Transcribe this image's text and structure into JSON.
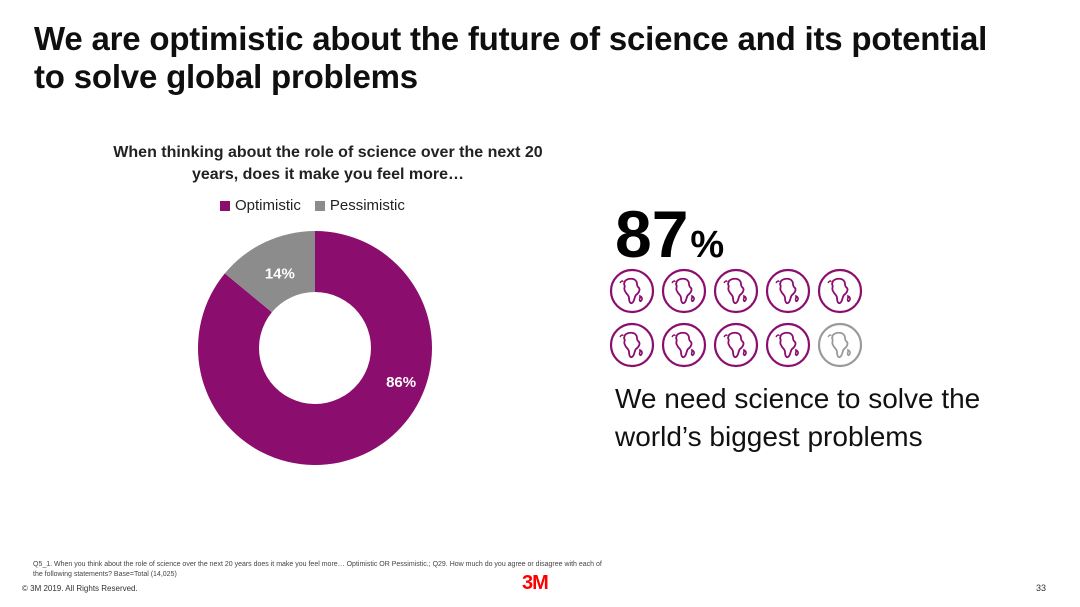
{
  "slide": {
    "title": "We are optimistic about the future of science and its potential to solve global problems",
    "footnote": "Q5_1. When you think about the role of science over the next 20 years does it make you feel more… Optimistic OR Pessimistic.; Q29. How much do you agree or disagree with each of the following statements? Base=Total (14,025)",
    "copyright": "© 3M 2019.   All Rights Reserved.",
    "logo": "3M",
    "page_number": "33"
  },
  "stat": {
    "value": "87",
    "unit": "%",
    "caption": "We need science to solve the world’s biggest problems",
    "globes_total": 10,
    "globes_filled": 9
  },
  "colors": {
    "optimistic": "#8b0d6e",
    "pessimistic": "#8c8c8c",
    "globe_filled": "#8b0d6e",
    "globe_empty": "#9a9a9a",
    "logo": "#ff0000"
  },
  "chart_data": {
    "type": "pie",
    "variant": "donut",
    "title": "When thinking about the role of science over the next 20 years, does it make you feel more…",
    "categories": [
      "Optimistic",
      "Pessimistic"
    ],
    "values": [
      86,
      14
    ],
    "data_labels": [
      "86%",
      "14%"
    ],
    "legend_position": "top"
  }
}
